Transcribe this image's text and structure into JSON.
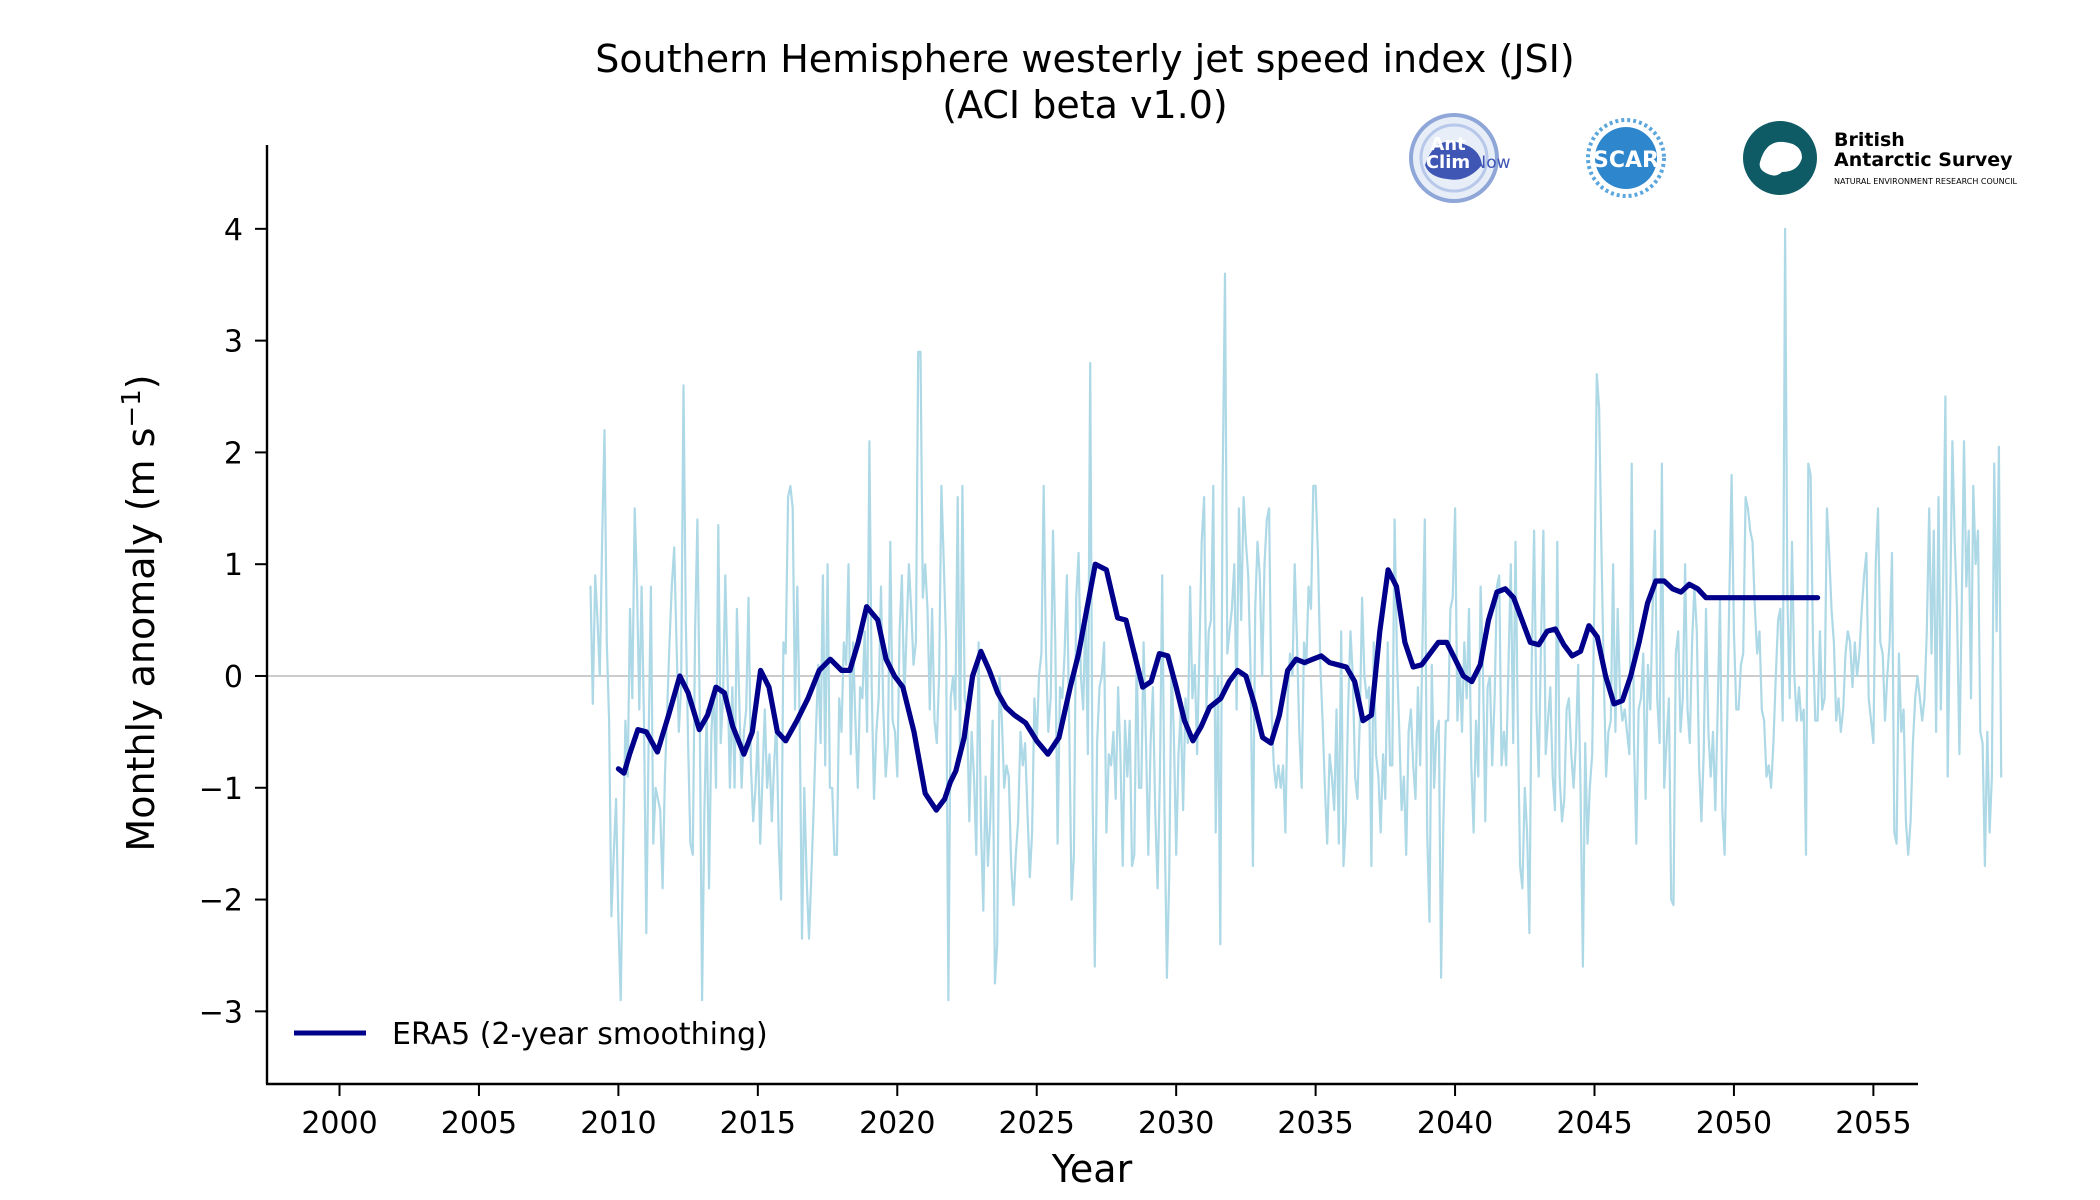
{
  "chart_data": {
    "type": "line",
    "title": "Southern Hemisphere westerly jet speed index (JSI)",
    "subtitle": "(ACI beta v1.0)",
    "xlabel": "Year",
    "ylabel": "Monthly anomaly (m s⁻¹)",
    "xlim": [
      1997.4,
      2056.6
    ],
    "ylim": [
      -3.65,
      4.75
    ],
    "x_ticks": [
      2000,
      2005,
      2010,
      2015,
      2020,
      2025,
      2030,
      2035,
      2040,
      2045,
      2050,
      2055
    ],
    "y_ticks": [
      -3,
      -2,
      -1,
      0,
      1,
      2,
      3,
      4
    ],
    "y_tick_labels": [
      "−3",
      "−2",
      "−1",
      "0",
      "1",
      "2",
      "3",
      "4"
    ],
    "zero_line": 0,
    "grid": false,
    "legend": {
      "placement": "lower-left",
      "entries": [
        "ERA5 (2-year smoothing)"
      ]
    },
    "series": [
      {
        "kind": "monthly",
        "color": "#add8e6",
        "x_start": 2009.0,
        "x_step": 0.0833333,
        "values": [
          0.8,
          -0.25,
          0.9,
          0.5,
          0.0,
          1.2,
          2.2,
          0.3,
          -0.4,
          -2.15,
          -1.6,
          -1.1,
          -2.2,
          -2.9,
          -1.6,
          -0.4,
          -0.9,
          0.6,
          -0.2,
          1.5,
          0.8,
          -0.3,
          0.8,
          -0.4,
          -2.3,
          -0.6,
          0.8,
          -1.5,
          -1.0,
          -1.1,
          -1.2,
          -1.9,
          -0.9,
          -0.3,
          0.3,
          0.8,
          1.15,
          0.3,
          -0.5,
          -0.1,
          2.6,
          0.5,
          -0.6,
          -1.5,
          -1.6,
          0.4,
          1.4,
          -0.3,
          -2.9,
          -1.2,
          -0.3,
          -1.9,
          -0.5,
          -0.1,
          -1.0,
          1.35,
          -0.6,
          -0.2,
          0.9,
          0.0,
          -1.0,
          -0.1,
          -1.0,
          0.6,
          -0.2,
          -1.0,
          -0.5,
          -0.3,
          0.7,
          -0.8,
          -1.3,
          -1.0,
          -0.5,
          -1.5,
          -0.9,
          -0.3,
          -1.0,
          -0.7,
          -1.3,
          -0.8,
          -0.4,
          -1.5,
          -2.0,
          0.3,
          0.2,
          1.6,
          1.7,
          1.5,
          -0.3,
          0.8,
          -0.4,
          -2.35,
          -1.0,
          -1.8,
          -2.35,
          -1.8,
          -1.2,
          -0.5,
          0.1,
          -0.6,
          0.9,
          -0.8,
          1.0,
          -1.0,
          -1.0,
          -1.6,
          -1.6,
          -0.2,
          -0.5,
          0.3,
          0.1,
          1.0,
          -0.7,
          0.3,
          -0.4,
          -1.0,
          -0.1,
          -0.2,
          0.4,
          -0.5,
          2.1,
          -0.1,
          -1.1,
          -0.5,
          -0.2,
          0.8,
          -0.3,
          -0.9,
          -0.6,
          1.2,
          -0.4,
          -0.5,
          -0.9,
          0.4,
          0.9,
          -0.2,
          0.4,
          1.0,
          0.6,
          0.1,
          0.3,
          2.9,
          2.9,
          0.7,
          1.0,
          0.6,
          -0.3,
          0.6,
          -0.4,
          -0.6,
          0.0,
          1.7,
          1.0,
          0.3,
          -2.9,
          -0.2,
          0.0,
          -0.3,
          1.6,
          -0.7,
          1.7,
          -0.2,
          -0.3,
          -1.3,
          -0.5,
          -0.9,
          -1.6,
          0.3,
          -1.3,
          -2.1,
          -0.9,
          -1.7,
          -1.3,
          -0.4,
          -2.75,
          -2.4,
          0.0,
          -0.4,
          -1.0,
          -0.8,
          -0.9,
          -1.7,
          -2.05,
          -1.6,
          -1.3,
          -0.5,
          -0.8,
          -0.6,
          -1.2,
          -1.8,
          -1.4,
          -0.2,
          -0.6,
          0.0,
          0.2,
          1.7,
          0.2,
          -0.5,
          -0.2,
          1.3,
          0.3,
          -1.5,
          -0.1,
          -0.2,
          0.2,
          0.9,
          -0.5,
          -2.0,
          -1.6,
          0.7,
          1.1,
          0.0,
          -0.3,
          0.6,
          -0.7,
          2.8,
          -1.0,
          -2.6,
          -0.6,
          -0.1,
          0.0,
          0.3,
          -1.4,
          -0.7,
          -0.8,
          -0.5,
          -1.1,
          -0.1,
          -0.7,
          -1.7,
          -0.4,
          -0.9,
          -0.4,
          -1.7,
          -1.6,
          0.2,
          -1.0,
          -1.0,
          0.3,
          -0.6,
          -1.6,
          -0.6,
          -0.1,
          -1.2,
          -1.9,
          -0.9,
          0.9,
          -1.2,
          -2.7,
          -1.8,
          0.1,
          -0.5,
          -1.6,
          -0.7,
          -0.3,
          -1.2,
          -0.2,
          -0.6,
          0.8,
          -0.2,
          0.1,
          -0.7,
          0.2,
          1.2,
          1.6,
          -0.3,
          0.4,
          0.5,
          1.7,
          -1.4,
          0.0,
          -2.4,
          1.7,
          3.6,
          0.2,
          0.4,
          0.6,
          1.0,
          -0.3,
          1.5,
          0.5,
          1.6,
          1.2,
          0.9,
          0.1,
          -1.7,
          0.6,
          1.2,
          0.9,
          0.0,
          1.0,
          1.4,
          1.5,
          -0.3,
          -0.8,
          -1.0,
          -0.8,
          -1.0,
          -0.8,
          -1.4,
          -0.2,
          0.2,
          0.0,
          1.0,
          0.3,
          -0.5,
          -1.0,
          0.3,
          0.1,
          0.8,
          0.6,
          1.7,
          1.7,
          1.1,
          0.1,
          -0.4,
          -1.0,
          -1.5,
          -0.7,
          -0.9,
          -1.2,
          -0.3,
          -1.5,
          0.4,
          -1.7,
          -1.3,
          -0.3,
          0.4,
          0.0,
          -0.9,
          -1.1,
          -0.4,
          0.7,
          0.0,
          -0.2,
          -0.1,
          -1.7,
          0.3,
          -0.7,
          -0.9,
          -1.4,
          -0.7,
          -1.1,
          0.3,
          -0.8,
          -0.8,
          1.4,
          0.2,
          -0.5,
          -1.2,
          -0.9,
          -1.6,
          -0.5,
          -0.3,
          -0.8,
          -1.1,
          -0.1,
          -0.8,
          0.3,
          1.4,
          -1.4,
          -2.2,
          0.1,
          -1.0,
          -0.5,
          -0.4,
          -2.7,
          -1.3,
          -0.4,
          -0.4,
          0.6,
          0.7,
          1.5,
          -0.4,
          0.1,
          -0.5,
          0.3,
          -0.2,
          0.6,
          -0.8,
          -1.4,
          -0.4,
          -0.9,
          0.8,
          0.1,
          -1.3,
          -0.1,
          0.0,
          -0.8,
          -0.2,
          0.8,
          0.9,
          -0.8,
          -0.5,
          -0.8,
          0.1,
          1.0,
          -0.6,
          1.2,
          -0.4,
          -1.7,
          -1.9,
          -1.0,
          -1.4,
          -2.3,
          0.1,
          1.3,
          -0.3,
          -0.9,
          0.3,
          1.3,
          -0.7,
          -0.4,
          -0.1,
          -0.9,
          -1.2,
          1.2,
          -0.9,
          -1.3,
          -1.1,
          -0.3,
          -0.2,
          -0.7,
          -1.0,
          -0.6,
          0.1,
          -1.0,
          -2.6,
          -0.6,
          -1.5,
          -1.0,
          -0.7,
          0.8,
          2.7,
          2.4,
          1.1,
          0.0,
          -0.9,
          -0.5,
          -0.4,
          1.0,
          -0.5,
          0.6,
          -0.2,
          -0.4,
          -0.3,
          -0.5,
          -0.7,
          1.9,
          -0.6,
          -1.5,
          -0.3,
          -0.2,
          0.2,
          -1.1,
          0.1,
          -0.3,
          0.6,
          1.3,
          -0.2,
          -0.6,
          1.9,
          -1.0,
          -0.6,
          -0.2,
          -2.0,
          -2.05,
          0.2,
          0.4,
          -0.5,
          -0.2,
          1.0,
          -0.3,
          -0.6,
          0.3,
          0.8,
          0.4,
          -0.8,
          -1.3,
          -0.7,
          0.6,
          -0.5,
          -0.9,
          -0.5,
          -1.2,
          -0.3,
          0.7,
          -1.2,
          -1.6,
          -0.5,
          0.7,
          1.8,
          0.4,
          -0.3,
          -0.3,
          0.1,
          0.2,
          1.6,
          1.5,
          1.3,
          1.2,
          0.6,
          0.2,
          0.4,
          -0.3,
          -0.4,
          -0.9,
          -0.8,
          -1.0,
          -0.6,
          0.0,
          0.5,
          0.6,
          -0.4,
          4.0,
          0.7,
          -0.2,
          1.2,
          0.0,
          -0.4,
          -0.1,
          -0.4,
          -0.3,
          -1.6,
          1.9,
          1.8,
          0.3,
          -0.4,
          -0.4,
          0.4,
          -0.3,
          -0.2,
          1.5,
          1.1,
          0.6,
          0.3,
          -0.4,
          -0.2,
          -0.5,
          -0.3,
          0.2,
          0.4,
          0.3,
          -0.1,
          0.3,
          0.0,
          0.2,
          0.6,
          0.9,
          1.1,
          -0.2,
          -0.4,
          -0.6,
          1.0,
          1.5,
          0.3,
          0.2,
          -0.4,
          0.0,
          0.3,
          1.1,
          -1.4,
          -1.5,
          0.2,
          -0.5,
          -0.3,
          -1.3,
          -1.6,
          -1.3,
          -0.6,
          -0.2,
          0.0,
          -0.2,
          -0.4,
          -0.2,
          0.4,
          1.5,
          0.2,
          1.3,
          -0.5,
          1.6,
          -0.3,
          0.8,
          2.5,
          -0.9,
          0.6,
          2.1,
          1.2,
          0.6,
          -0.7,
          0.6,
          2.1,
          0.8,
          1.3,
          -0.2,
          1.7,
          1.0,
          1.3,
          -0.5,
          -0.6,
          -1.7,
          -0.5,
          -1.4,
          -0.9,
          1.9,
          0.4,
          2.05,
          -0.9
        ]
      },
      {
        "name": "ERA5 (2-year smoothing)",
        "kind": "smoothed",
        "color": "#00008b",
        "x": [
          2010.0,
          2010.2,
          2010.4,
          2010.7,
          2011.0,
          2011.4,
          2011.8,
          2012.2,
          2012.5,
          2012.9,
          2013.2,
          2013.5,
          2013.8,
          2014.1,
          2014.5,
          2014.8,
          2015.1,
          2015.4,
          2015.7,
          2016.0,
          2016.4,
          2016.8,
          2017.2,
          2017.6,
          2018.0,
          2018.3,
          2018.6,
          2018.9,
          2019.3,
          2019.6,
          2019.9,
          2020.2,
          2020.6,
          2021.0,
          2021.4,
          2021.7,
          2021.9,
          2022.1,
          2022.4,
          2022.7,
          2023.0,
          2023.3,
          2023.6,
          2023.9,
          2024.2,
          2024.6,
          2025.0,
          2025.4,
          2025.8,
          2026.2,
          2026.5,
          2026.8,
          2027.1,
          2027.5,
          2027.9,
          2028.2,
          2028.5,
          2028.8,
          2029.1,
          2029.4,
          2029.7,
          2030.0,
          2030.3,
          2030.6,
          2030.9,
          2031.2,
          2031.6,
          2031.9,
          2032.2,
          2032.5,
          2032.8,
          2033.1,
          2033.4,
          2033.7,
          2034.0,
          2034.3,
          2034.6,
          2034.9,
          2035.2,
          2035.5,
          2035.8,
          2036.1,
          2036.4,
          2036.7,
          2037.0,
          2037.3,
          2037.6,
          2037.9,
          2038.2,
          2038.5,
          2038.8,
          2039.1,
          2039.4,
          2039.7,
          2040.0,
          2040.3,
          2040.6,
          2040.9,
          2041.2,
          2041.5,
          2041.8,
          2042.1,
          2042.4,
          2042.7,
          2043.0,
          2043.3,
          2043.6,
          2043.9,
          2044.2,
          2044.5,
          2044.8,
          2045.1,
          2045.4,
          2045.7,
          2046.0,
          2046.3,
          2046.6,
          2046.9,
          2047.2,
          2047.5,
          2047.8,
          2048.1,
          2048.4,
          2048.7,
          2049.0,
          2049.3,
          2049.6,
          2049.9,
          2050.2,
          2050.5,
          2050.8,
          2051.1,
          2051.4,
          2051.7,
          2052.0,
          2052.3,
          2052.6,
          2052.9,
          2053.0
        ],
        "values": [
          -0.83,
          -0.87,
          -0.7,
          -0.48,
          -0.5,
          -0.68,
          -0.35,
          0.0,
          -0.15,
          -0.48,
          -0.35,
          -0.1,
          -0.15,
          -0.45,
          -0.7,
          -0.5,
          0.05,
          -0.1,
          -0.5,
          -0.58,
          -0.4,
          -0.2,
          0.05,
          0.15,
          0.05,
          0.05,
          0.3,
          0.62,
          0.5,
          0.15,
          0.0,
          -0.1,
          -0.5,
          -1.05,
          -1.2,
          -1.1,
          -0.95,
          -0.85,
          -0.55,
          0.0,
          0.22,
          0.05,
          -0.15,
          -0.28,
          -0.35,
          -0.42,
          -0.58,
          -0.7,
          -0.55,
          -0.1,
          0.2,
          0.6,
          1.0,
          0.95,
          0.52,
          0.5,
          0.2,
          -0.1,
          -0.05,
          0.2,
          0.18,
          -0.1,
          -0.4,
          -0.58,
          -0.45,
          -0.28,
          -0.2,
          -0.05,
          0.05,
          0.0,
          -0.25,
          -0.55,
          -0.6,
          -0.35,
          0.05,
          0.15,
          0.12,
          0.15,
          0.18,
          0.12,
          0.1,
          0.08,
          -0.05,
          -0.4,
          -0.35,
          0.4,
          0.95,
          0.8,
          0.3,
          0.08,
          0.1,
          0.2,
          0.3,
          0.3,
          0.15,
          0.0,
          -0.05,
          0.1,
          0.5,
          0.75,
          0.78,
          0.7,
          0.5,
          0.3,
          0.28,
          0.4,
          0.42,
          0.28,
          0.18,
          0.22,
          0.45,
          0.35,
          0.0,
          -0.25,
          -0.22,
          0.0,
          0.3,
          0.65,
          0.85,
          0.85,
          0.78,
          0.75,
          0.82,
          0.78,
          0.7,
          0.7,
          0.7,
          0.7,
          0.7,
          0.7,
          0.7,
          0.7,
          0.7,
          0.7,
          0.7,
          0.7,
          0.7,
          0.7,
          0.7
        ]
      }
    ]
  },
  "logos": {
    "antclimnow": {
      "line1": "Ant",
      "line2": "Clim",
      "suffix": "Now"
    },
    "scar": {
      "text": "SCAR"
    },
    "bas": {
      "line1": "British",
      "line2": "Antarctic Survey",
      "line3": "NATURAL ENVIRONMENT RESEARCH COUNCIL"
    }
  }
}
